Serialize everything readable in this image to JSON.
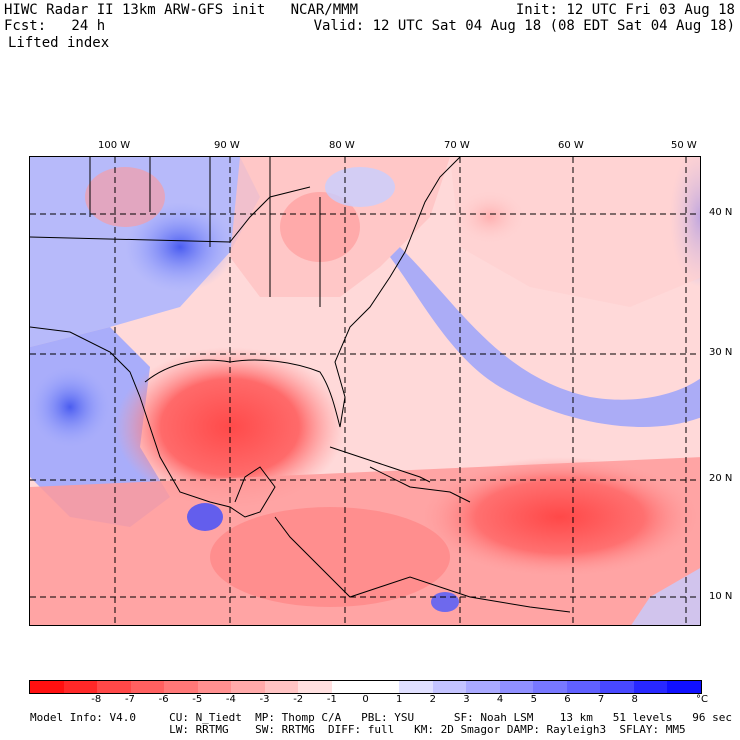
{
  "header": {
    "title_line": "HIWC Radar II 13km ARW-GFS init   NCAR/MMM",
    "fcst_line": "Fcst:   24 h",
    "field_name": "Lifted index",
    "init_line": "Init: 12 UTC Fri 03 Aug 18",
    "valid_line": "Valid: 12 UTC Sat 04 Aug 18 (08 EDT Sat 04 Aug 18)"
  },
  "map": {
    "lon_labels": [
      "100 W",
      "90 W",
      "80 W",
      "70 W",
      "60 W",
      "50 W"
    ],
    "lat_labels": [
      "40 N",
      "30 N",
      "20 N",
      "10 N"
    ]
  },
  "colorbar": {
    "unit": "°C",
    "tick_labels": [
      "-8",
      "-7",
      "-6",
      "-5",
      "-4",
      "-3",
      "-2",
      "-1",
      "0",
      "1",
      "2",
      "3",
      "4",
      "5",
      "6",
      "7",
      "8"
    ],
    "colors": [
      "#ff1010",
      "#ff2828",
      "#ff4848",
      "#ff6060",
      "#ff7878",
      "#ff9090",
      "#ffaaaa",
      "#ffc4c4",
      "#ffe0e0",
      "#ffffff",
      "#ffffff",
      "#e0e0ff",
      "#c4c4ff",
      "#aaaaff",
      "#9090ff",
      "#7878ff",
      "#6060ff",
      "#4848ff",
      "#2828ff",
      "#1010ff"
    ]
  },
  "footer": {
    "line1": "Model Info: V4.0     CU: N_Tiedt  MP: Thomp C/A   PBL: YSU      SF: Noah LSM    13 km   51 levels   96 sec",
    "line2": "                     LW: RRTMG    SW: RRTMG  DIFF: full   KM: 2D Smagor DAMP: Rayleigh3  SFLAY: MM5"
  }
}
